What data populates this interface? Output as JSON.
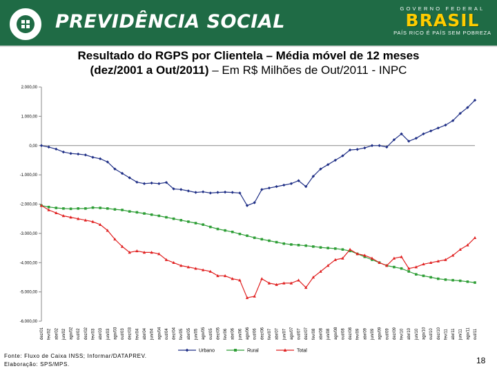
{
  "header": {
    "brand_title": "PREVIDÊNCIA SOCIAL",
    "gov_top": "GOVERNO FEDERAL",
    "gov_name": "BRASIL",
    "gov_motto": "PAÍS RICO É PAÍS SEM POBREZA",
    "logo_icon": "previdencia-logo-icon",
    "colors": {
      "banner": "#1f6b45",
      "flag_yellow": "#ffcc00"
    }
  },
  "title": {
    "line1": "Resultado do RGPS por Clientela – Média móvel de 12 meses",
    "line2_bold": "(dez/2001 a Out/2011)",
    "line2_rest": " – Em R$ Milhões de Out/2011 - INPC"
  },
  "footer": {
    "source": "Fonte: Fluxo de Caixa INSS; Informar/DATAPREV.",
    "elaboration": "Elaboração: SPS/MPS."
  },
  "page_number": "18",
  "chart_data": {
    "type": "line",
    "title": "",
    "xlabel": "",
    "ylabel": "",
    "ylim": [
      -6000,
      2000
    ],
    "yticks": [
      2000,
      1000,
      0,
      -1000,
      -2000,
      -3000,
      -4000,
      -5000,
      -6000
    ],
    "ytick_labels": [
      "2.000,00",
      "1.000,00",
      "0,00",
      "-1.000,00",
      "-2.000,00",
      "-3.000,00",
      "-4.000,00",
      "-5.000,00",
      "-6.000,00"
    ],
    "grid": false,
    "legend_position": "bottom",
    "categories": [
      "dez/01",
      "fev/02",
      "abr/02",
      "jun/02",
      "ago/02",
      "out/02",
      "dez/02",
      "fev/03",
      "abr/03",
      "jun/03",
      "ago/03",
      "out/03",
      "dez/03",
      "fev/04",
      "abr/04",
      "jun/04",
      "ago/04",
      "out/04",
      "dez/04",
      "fev/05",
      "abr/05",
      "jun/05",
      "ago/05",
      "out/05",
      "dez/05",
      "fev/06",
      "abr/06",
      "jun/06",
      "ago/06",
      "out/06",
      "dez/06",
      "fev/07",
      "abr/07",
      "jun/07",
      "ago/07",
      "out/07",
      "dez/07",
      "fev/08",
      "abr/08",
      "jun/08",
      "ago/08",
      "out/08",
      "dez/08",
      "fev/09",
      "abr/09",
      "jun/09",
      "ago/09",
      "out/09",
      "dez/09",
      "fev/10",
      "abr/10",
      "jun/10",
      "ago/10",
      "out/10",
      "dez/10",
      "fev/11",
      "abr/11",
      "jun/11",
      "ago/11",
      "out/11"
    ],
    "series": [
      {
        "name": "Urbano",
        "color": "#1f2f86",
        "marker": "diamond",
        "values": [
          0,
          -50,
          -120,
          -220,
          -270,
          -290,
          -320,
          -400,
          -450,
          -560,
          -800,
          -950,
          -1100,
          -1250,
          -1300,
          -1280,
          -1300,
          -1260,
          -1480,
          -1500,
          -1550,
          -1600,
          -1580,
          -1620,
          -1600,
          -1590,
          -1600,
          -1620,
          -2050,
          -1950,
          -1500,
          -1450,
          -1400,
          -1350,
          -1300,
          -1200,
          -1400,
          -1050,
          -800,
          -650,
          -500,
          -350,
          -150,
          -130,
          -80,
          0,
          0,
          -50,
          200,
          400,
          150,
          250,
          400,
          500,
          600,
          700,
          850,
          1100,
          1300,
          1550
        ]
      },
      {
        "name": "Rural",
        "color": "#2e9e36",
        "marker": "square",
        "values": [
          -2050,
          -2100,
          -2130,
          -2150,
          -2160,
          -2150,
          -2150,
          -2120,
          -2130,
          -2150,
          -2180,
          -2200,
          -2250,
          -2280,
          -2320,
          -2360,
          -2400,
          -2450,
          -2500,
          -2550,
          -2600,
          -2650,
          -2700,
          -2780,
          -2850,
          -2900,
          -2950,
          -3020,
          -3080,
          -3150,
          -3200,
          -3250,
          -3300,
          -3350,
          -3380,
          -3400,
          -3420,
          -3450,
          -3480,
          -3500,
          -3520,
          -3550,
          -3600,
          -3700,
          -3800,
          -3900,
          -4000,
          -4100,
          -4150,
          -4200,
          -4300,
          -4400,
          -4450,
          -4500,
          -4550,
          -4580,
          -4600,
          -4620,
          -4650,
          -4680
        ]
      },
      {
        "name": "Total",
        "color": "#e02020",
        "marker": "triangle",
        "values": [
          -2050,
          -2200,
          -2300,
          -2400,
          -2450,
          -2500,
          -2550,
          -2600,
          -2700,
          -2900,
          -3200,
          -3450,
          -3650,
          -3600,
          -3650,
          -3650,
          -3700,
          -3900,
          -4000,
          -4100,
          -4150,
          -4200,
          -4250,
          -4300,
          -4450,
          -4450,
          -4550,
          -4600,
          -5200,
          -5150,
          -4550,
          -4700,
          -4750,
          -4700,
          -4700,
          -4600,
          -4850,
          -4500,
          -4300,
          -4100,
          -3900,
          -3850,
          -3550,
          -3700,
          -3750,
          -3850,
          -4000,
          -4100,
          -3850,
          -3800,
          -4200,
          -4150,
          -4050,
          -4000,
          -3950,
          -3900,
          -3750,
          -3550,
          -3400,
          -3150
        ]
      }
    ]
  }
}
